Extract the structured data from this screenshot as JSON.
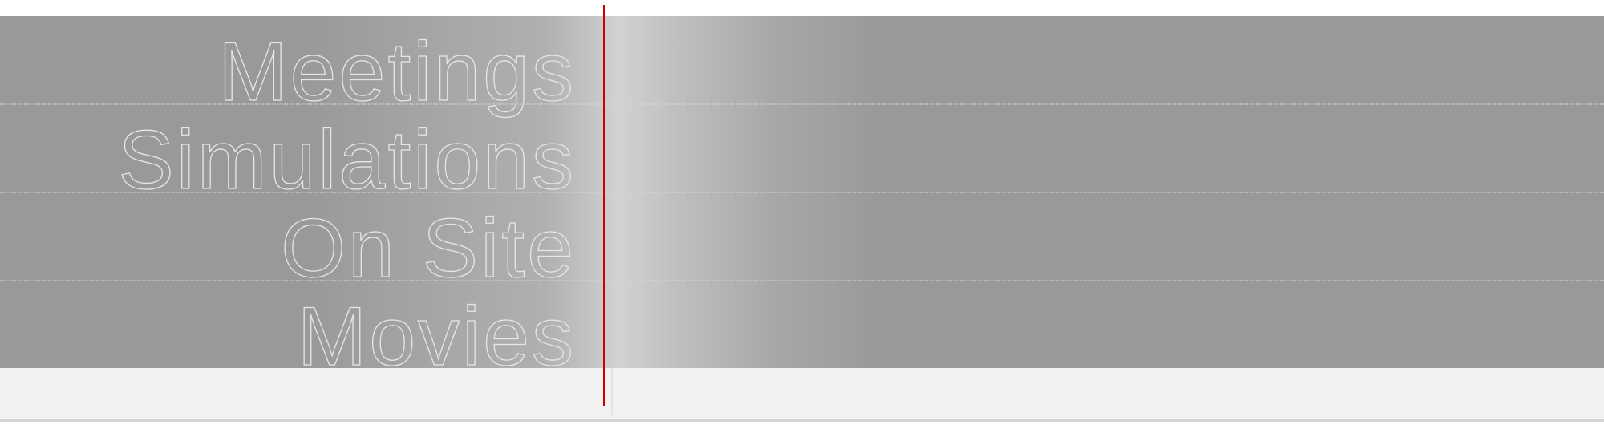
{
  "items": [
    {
      "label": "Meetings"
    },
    {
      "label": "Simulations"
    },
    {
      "label": "On Site"
    },
    {
      "label": "Movies"
    }
  ]
}
